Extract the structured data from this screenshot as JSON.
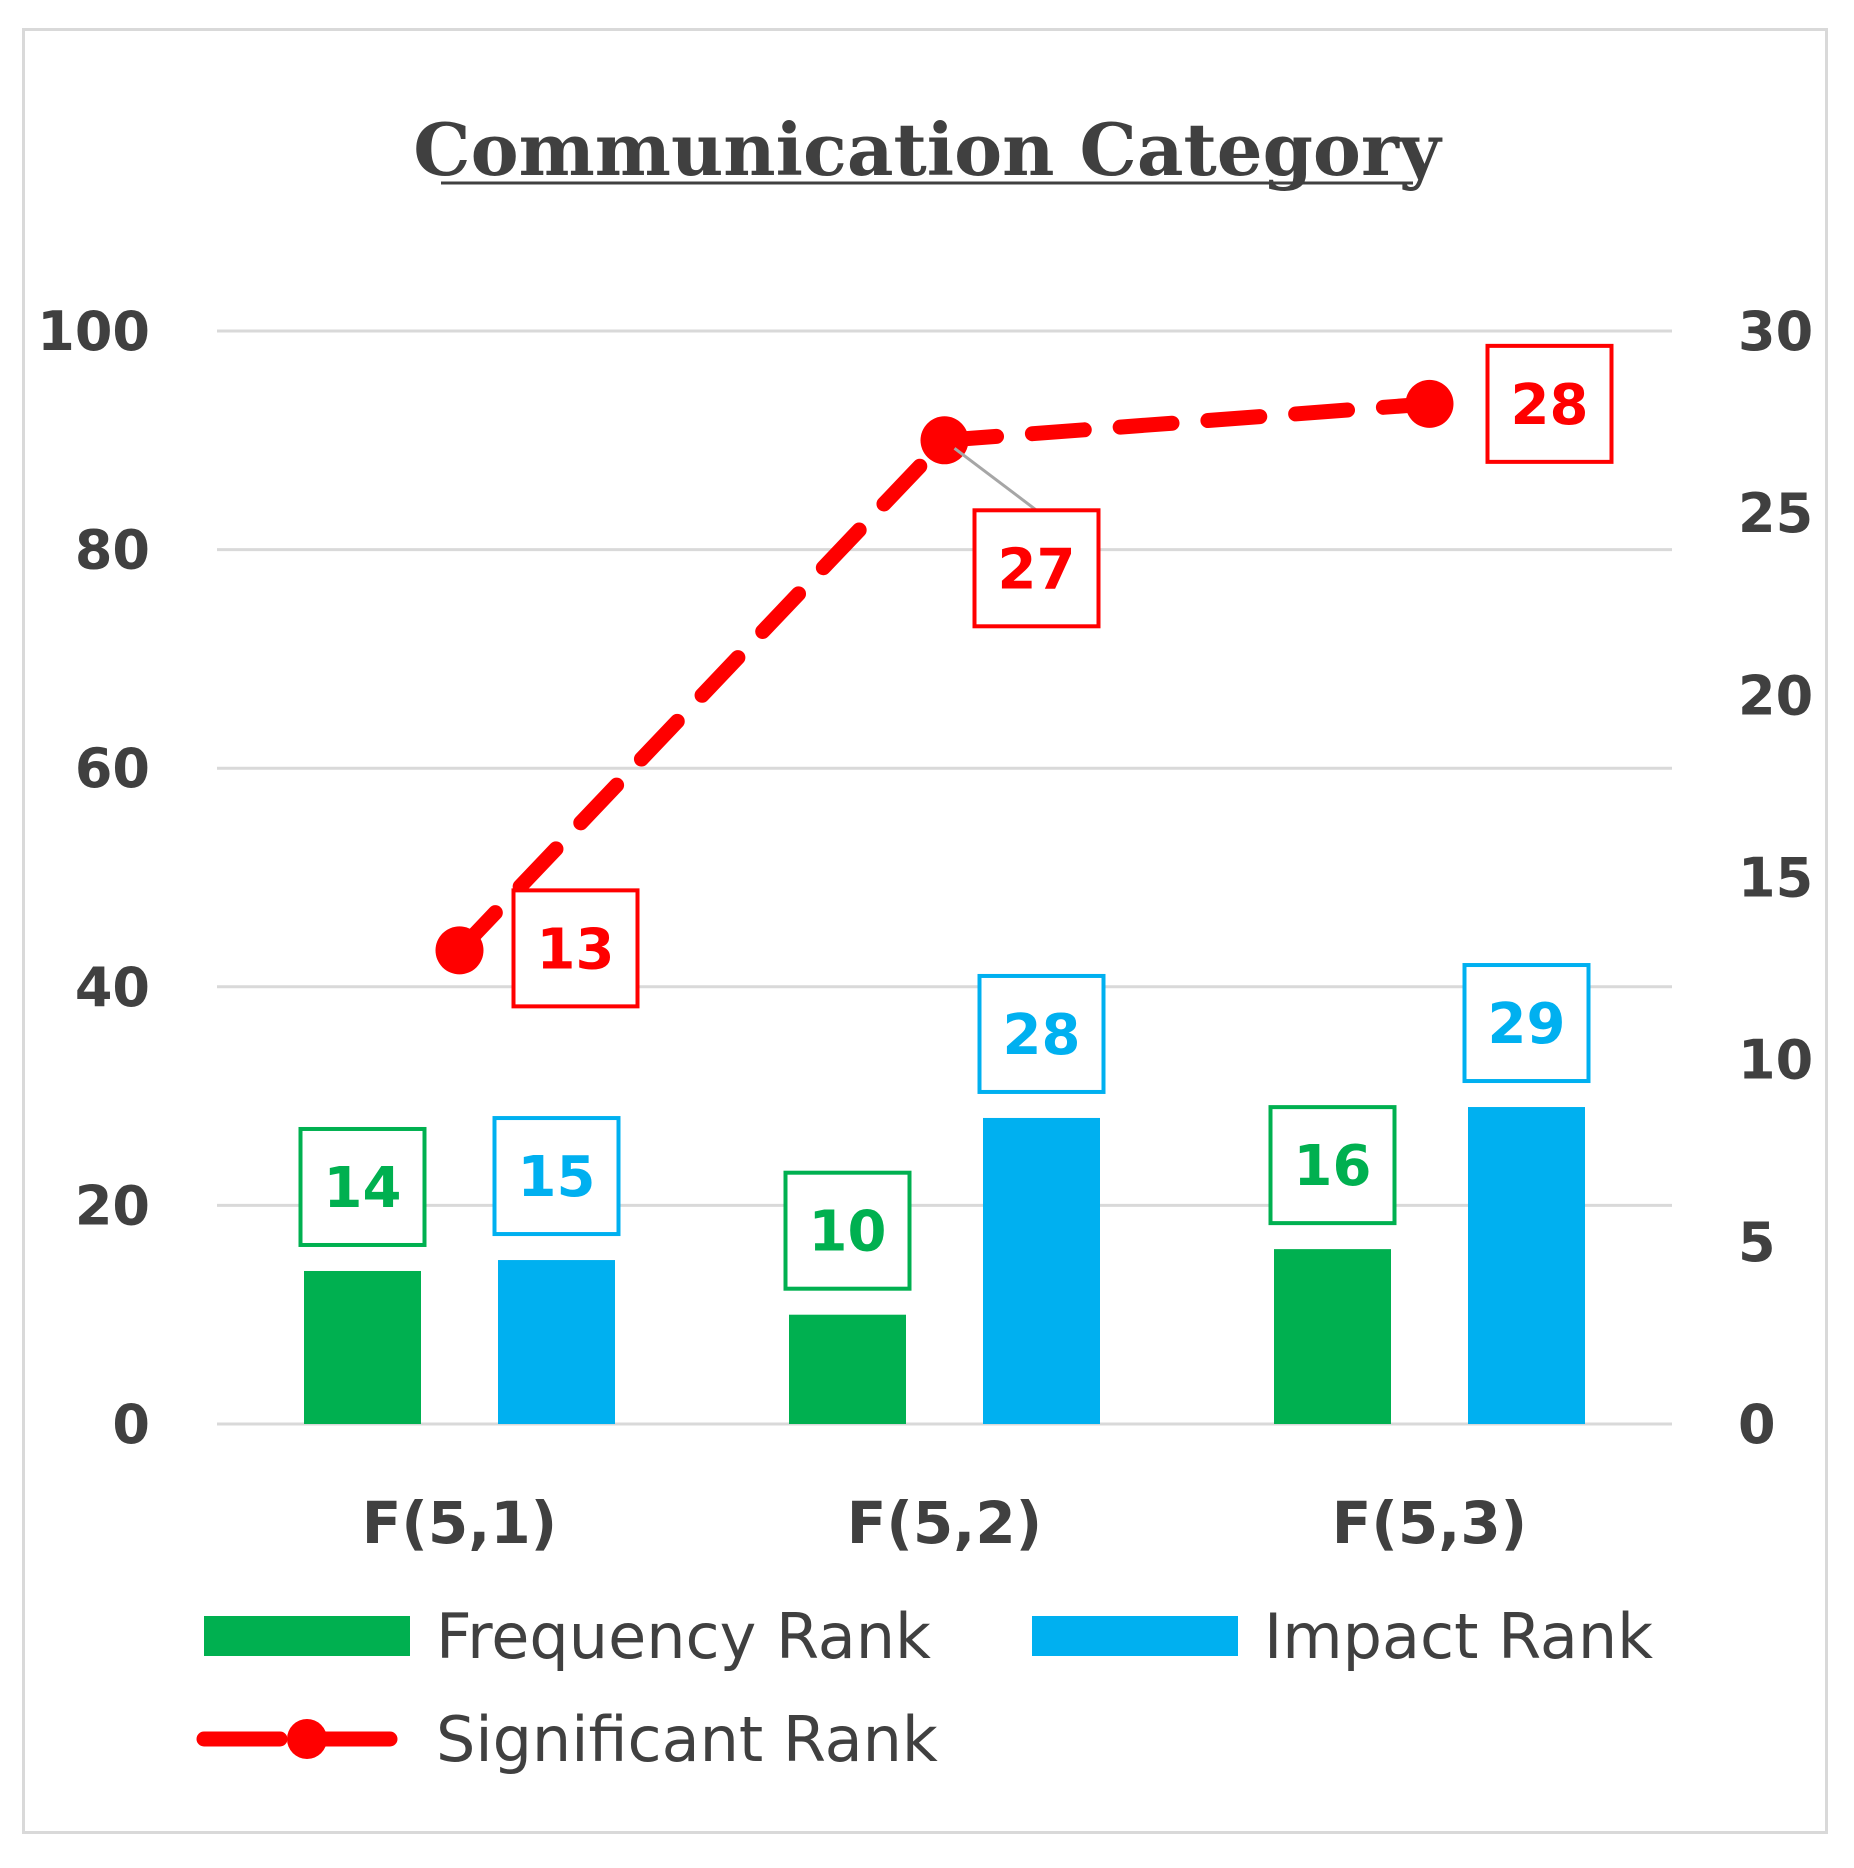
{
  "chart_data": {
    "type": "bar+line",
    "title": "Communication Category",
    "categories": [
      "F(5,1)",
      "F(5,2)",
      "F(5,3)"
    ],
    "y_left": {
      "min": 0,
      "max": 100,
      "ticks": [
        0,
        20,
        40,
        60,
        80,
        100
      ]
    },
    "y_right": {
      "min": 0,
      "max": 30,
      "ticks": [
        0,
        5,
        10,
        15,
        20,
        25,
        30
      ]
    },
    "gridlines": true,
    "legend_position": "bottom",
    "series": [
      {
        "name": "Frequency Rank",
        "kind": "bar",
        "axis": "left",
        "color": "#00b050",
        "values": [
          14,
          10,
          16
        ],
        "labels": [
          "14",
          "10",
          "16"
        ]
      },
      {
        "name": "Impact Rank",
        "kind": "bar",
        "axis": "left",
        "color": "#00b0f0",
        "values": [
          15,
          28,
          29
        ],
        "labels": [
          "15",
          "28",
          "29"
        ]
      },
      {
        "name": "Significant Rank",
        "kind": "line",
        "style": "dashed-with-markers",
        "axis": "right",
        "color": "#ff0000",
        "values": [
          13,
          27,
          28
        ],
        "labels": [
          "13",
          "27",
          "28"
        ]
      }
    ]
  }
}
